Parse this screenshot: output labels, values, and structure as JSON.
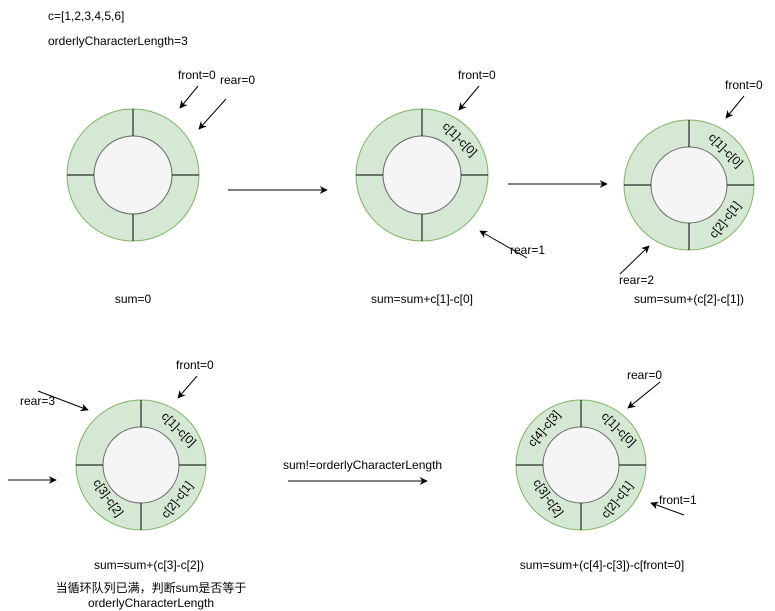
{
  "header": {
    "array_def": "c=[1,2,3,4,5,6]",
    "length_def": "orderlyCharacterLength=3"
  },
  "step1": {
    "front": "front=0",
    "rear": "rear=0",
    "sum": "sum=0"
  },
  "step2": {
    "front": "front=0",
    "rear": "rear=1",
    "slot1": "c[1]-c[0]",
    "sum": "sum=sum+c[1]-c[0]"
  },
  "step3": {
    "front": "front=0",
    "rear": "rear=2",
    "slot1": "c[1]-c[0]",
    "slot2": "c[2]-c[1]",
    "sum": "sum=sum+(c[2]-c[1])"
  },
  "step4": {
    "front": "front=0",
    "rear": "rear=3",
    "slot1": "c[1]-c[0]",
    "slot2": "c[2]-c[1]",
    "slot3": "c[3]-c[2]",
    "sum": "sum=sum+(c[3]-c[2])",
    "note_line1": "当循环队列已满，判断sum是否等于",
    "note_line2": "orderlyCharacterLength"
  },
  "transition": {
    "label": "sum!=orderlyCharacterLength"
  },
  "step5": {
    "front": "front=1",
    "rear": "rear=0",
    "slot1": "c[1]-c[0]",
    "slot2": "c[2]-c[1]",
    "slot3": "c[3]-c[2]",
    "slot4": "c[4]-c[3]",
    "sum": "sum=sum+(c[4]-c[3])-c[front=0]"
  }
}
